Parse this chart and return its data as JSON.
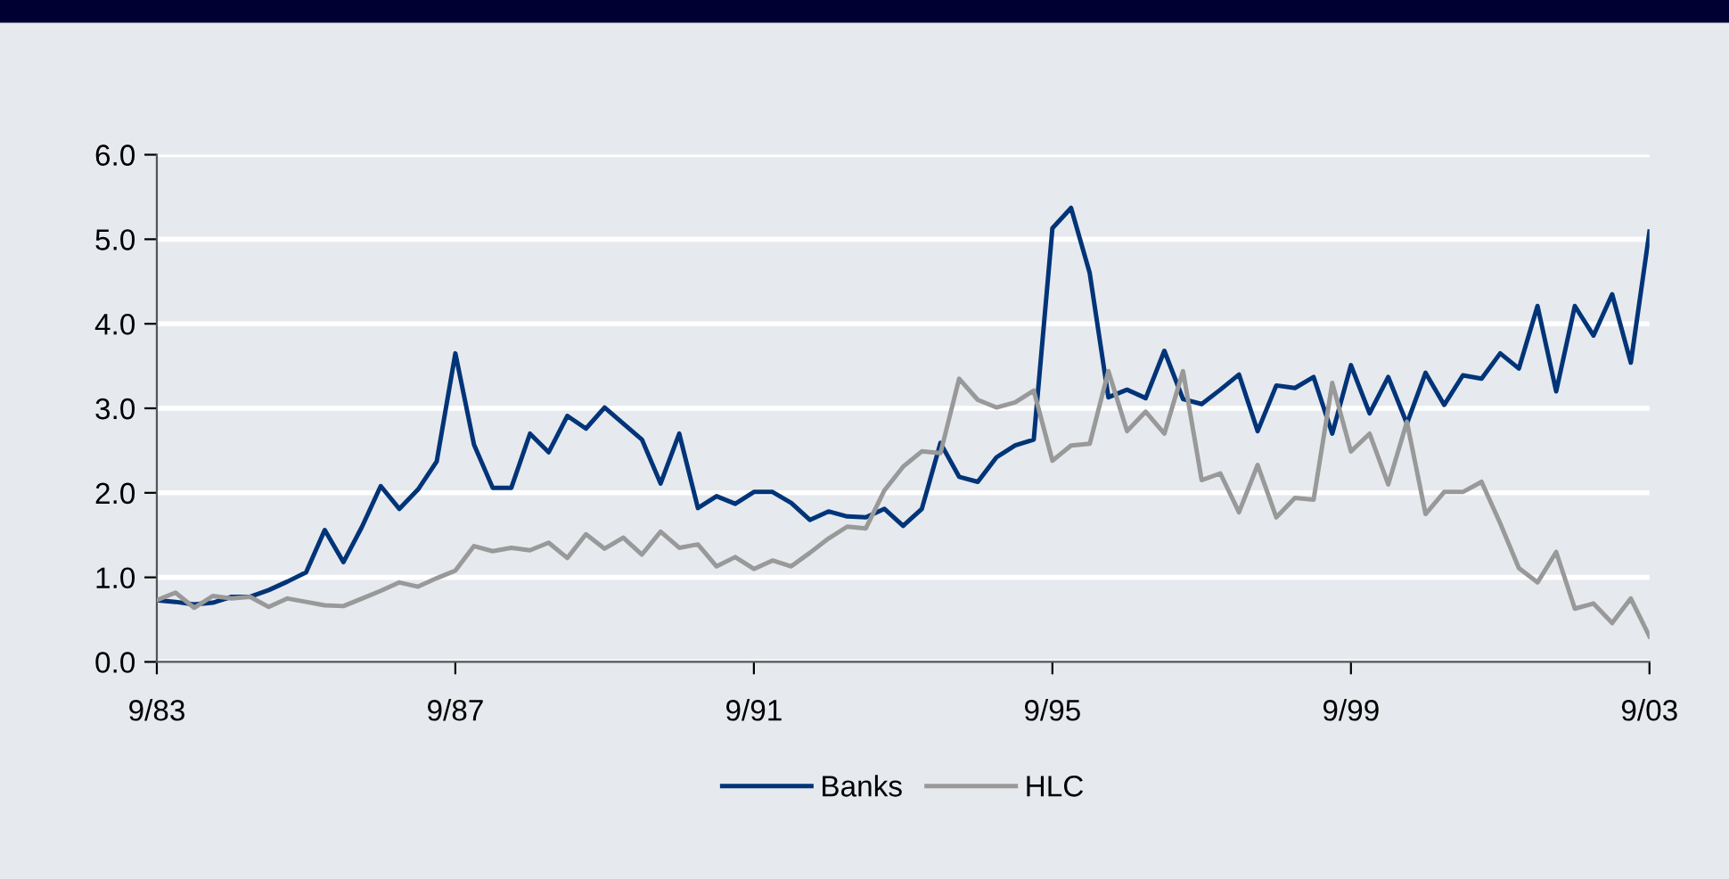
{
  "chart_data": {
    "type": "line",
    "categories": [
      "9/83",
      null,
      null,
      null,
      null,
      null,
      null,
      null,
      null,
      null,
      null,
      null,
      null,
      null,
      null,
      null,
      "9/87",
      null,
      null,
      null,
      null,
      null,
      null,
      null,
      null,
      null,
      null,
      null,
      null,
      null,
      null,
      null,
      "9/91",
      null,
      null,
      null,
      null,
      null,
      null,
      null,
      null,
      null,
      null,
      null,
      null,
      null,
      null,
      null,
      "9/95",
      null,
      null,
      null,
      null,
      null,
      null,
      null,
      null,
      null,
      null,
      null,
      null,
      null,
      null,
      null,
      "9/99",
      null,
      null,
      null,
      null,
      null,
      null,
      null,
      null,
      null,
      null,
      null,
      null,
      null,
      null,
      null,
      "9/03"
    ],
    "series": [
      {
        "name": "Banks",
        "color": "#003478",
        "values": [
          0.73,
          0.71,
          0.68,
          0.7,
          0.77,
          0.77,
          0.85,
          0.95,
          1.06,
          1.56,
          1.18,
          1.6,
          2.08,
          1.81,
          2.04,
          2.37,
          3.65,
          2.57,
          2.06,
          2.06,
          2.7,
          2.48,
          2.91,
          2.76,
          3.01,
          2.82,
          2.63,
          2.11,
          2.7,
          1.82,
          1.96,
          1.87,
          2.01,
          2.01,
          1.88,
          1.68,
          1.78,
          1.72,
          1.71,
          1.81,
          1.61,
          1.81,
          2.59,
          2.19,
          2.13,
          2.42,
          2.56,
          2.63,
          5.13,
          5.37,
          4.6,
          3.13,
          3.22,
          3.12,
          3.68,
          3.11,
          3.05,
          3.22,
          3.4,
          2.73,
          3.27,
          3.24,
          3.37,
          2.7,
          3.51,
          2.94,
          3.37,
          2.82,
          3.42,
          3.04,
          3.39,
          3.35,
          3.65,
          3.47,
          4.21,
          3.2,
          4.21,
          3.86,
          4.35,
          3.54,
          5.09
        ]
      },
      {
        "name": "HLC",
        "color": "#999999",
        "values": [
          0.73,
          0.82,
          0.64,
          0.78,
          0.75,
          0.77,
          0.65,
          0.75,
          0.71,
          0.67,
          0.66,
          0.75,
          0.84,
          0.94,
          0.89,
          0.99,
          1.08,
          1.37,
          1.31,
          1.35,
          1.32,
          1.41,
          1.23,
          1.51,
          1.34,
          1.47,
          1.27,
          1.54,
          1.35,
          1.39,
          1.13,
          1.24,
          1.1,
          1.2,
          1.13,
          1.29,
          1.46,
          1.6,
          1.58,
          2.03,
          2.31,
          2.49,
          2.47,
          3.35,
          3.1,
          3.01,
          3.07,
          3.21,
          2.38,
          2.56,
          2.58,
          3.44,
          2.73,
          2.96,
          2.7,
          3.44,
          2.15,
          2.23,
          1.77,
          2.33,
          1.71,
          1.94,
          1.92,
          3.3,
          2.49,
          2.7,
          2.1,
          2.84,
          1.75,
          2.01,
          2.01,
          2.13,
          1.64,
          1.11,
          0.94,
          1.3,
          0.63,
          0.69,
          0.46,
          0.75,
          0.3
        ]
      }
    ],
    "ylim": [
      0,
      6
    ],
    "yticks": [
      {
        "value": 0,
        "label": "0.0"
      },
      {
        "value": 1,
        "label": "1.0"
      },
      {
        "value": 2,
        "label": "2.0"
      },
      {
        "value": 3,
        "label": "3.0"
      },
      {
        "value": 4,
        "label": "4.0"
      },
      {
        "value": 5,
        "label": "5.0"
      },
      {
        "value": 6,
        "label": "6.0"
      }
    ],
    "grid": "y",
    "legend": "bottom",
    "marker": "none",
    "line_style": "solid"
  }
}
